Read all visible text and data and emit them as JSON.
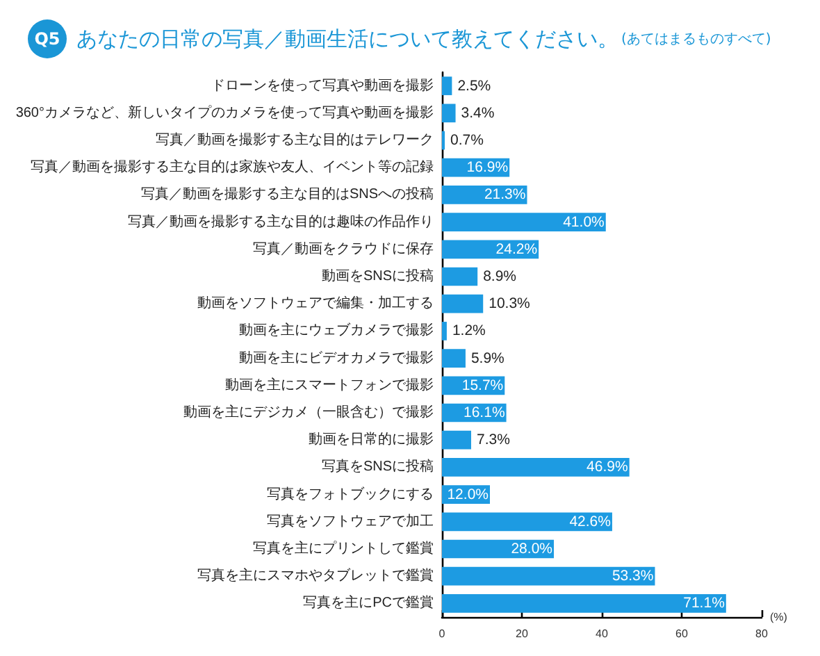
{
  "chart_data": {
    "type": "bar",
    "orientation": "horizontal",
    "title": "あなたの日常の写真／動画生活について教えてください。",
    "subtitle": "(あてはまるものすべて)",
    "annotations": [
      "Q5"
    ],
    "xlabel": "(%)",
    "categories": [
      "ドローンを使って写真や動画を撮影",
      "360°カメラなど、新しいタイプのカメラを使って写真や動画を撮影",
      "写真／動画を撮影する主な目的はテレワーク",
      "写真／動画を撮影する主な目的は家族や友人、イベント等の記録",
      "写真／動画を撮影する主な目的はSNSへの投稿",
      "写真／動画を撮影する主な目的は趣味の作品作り",
      "写真／動画をクラウドに保存",
      "動画をSNSに投稿",
      "動画をソフトウェアで編集・加工する",
      "動画を主にウェブカメラで撮影",
      "動画を主にビデオカメラで撮影",
      "動画を主にスマートフォンで撮影",
      "動画を主にデジカメ（一眼含む）で撮影",
      "動画を日常的に撮影",
      "写真をSNSに投稿",
      "写真をフォトブックにする",
      "写真をソフトウェアで加工",
      "写真を主にプリントして鑑賞",
      "写真を主にスマホやタブレットで鑑賞",
      "写真を主にPCで鑑賞"
    ],
    "values": [
      2.5,
      3.4,
      0.7,
      16.9,
      21.3,
      41.0,
      24.2,
      8.9,
      10.3,
      1.2,
      5.9,
      15.7,
      16.1,
      7.3,
      46.9,
      12.0,
      42.6,
      28.0,
      53.3,
      71.1
    ],
    "value_labels": [
      "2.5%",
      "3.4%",
      "0.7%",
      "16.9%",
      "21.3%",
      "41.0%",
      "24.2%",
      "8.9%",
      "10.3%",
      "1.2%",
      "5.9%",
      "15.7%",
      "16.1%",
      "7.3%",
      "46.9%",
      "12.0%",
      "42.6%",
      "28.0%",
      "53.3%",
      "71.1%"
    ],
    "color": "#1d9be2",
    "xlim": [
      0,
      80
    ],
    "xticks": [
      0,
      20,
      40,
      60,
      80
    ],
    "grid": false
  }
}
